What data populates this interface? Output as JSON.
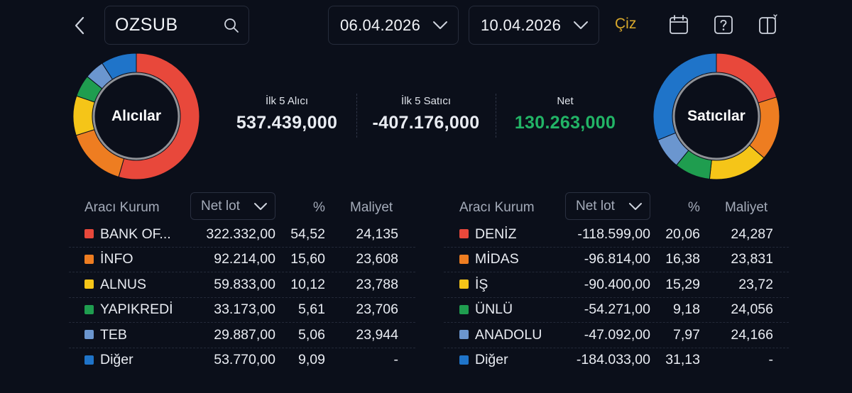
{
  "header": {
    "search_value": "OZSUB",
    "start_date": "06.04.2026",
    "end_date": "10.04.2026",
    "draw_label": "Çiz",
    "icons": [
      "chevron-left-icon",
      "search-icon",
      "chevron-down-icon",
      "calendar-icon",
      "help-icon",
      "layout-toggle-icon"
    ]
  },
  "summary": {
    "buyers_label": "Alıcılar",
    "sellers_label": "Satıcılar",
    "top5_buyers_label": "İlk 5 Alıcı",
    "top5_buyers_value": "537.439,000",
    "top5_sellers_label": "İlk 5 Satıcı",
    "top5_sellers_value": "-407.176,000",
    "net_label": "Net",
    "net_value": "130.263,000",
    "net_color": "#22b466"
  },
  "colors": {
    "red": "#e8483b",
    "orange": "#ee7d21",
    "yellow": "#f5c518",
    "green": "#1f9d4f",
    "lightblue": "#6b96cf",
    "blue": "#1f74c9"
  },
  "buyers": {
    "headers": {
      "broker": "Aracı Kurum",
      "sort": "Net lot",
      "pct": "%",
      "cost": "Maliyet"
    },
    "rows": [
      {
        "name": "BANK OF...",
        "lot": "322.332,00",
        "pct": "54,52",
        "cost": "24,135",
        "color": "#e8483b"
      },
      {
        "name": "İNFO",
        "lot": "92.214,00",
        "pct": "15,60",
        "cost": "23,608",
        "color": "#ee7d21"
      },
      {
        "name": "ALNUS",
        "lot": "59.833,00",
        "pct": "10,12",
        "cost": "23,788",
        "color": "#f5c518"
      },
      {
        "name": "YAPIKREDİ",
        "lot": "33.173,00",
        "pct": "5,61",
        "cost": "23,706",
        "color": "#1f9d4f"
      },
      {
        "name": "TEB",
        "lot": "29.887,00",
        "pct": "5,06",
        "cost": "23,944",
        "color": "#6b96cf"
      },
      {
        "name": "Diğer",
        "lot": "53.770,00",
        "pct": "9,09",
        "cost": "-",
        "color": "#1f74c9"
      }
    ]
  },
  "sellers": {
    "headers": {
      "broker": "Aracı Kurum",
      "sort": "Net lot",
      "pct": "%",
      "cost": "Maliyet"
    },
    "rows": [
      {
        "name": "DENİZ",
        "lot": "-118.599,00",
        "pct": "20,06",
        "cost": "24,287",
        "color": "#e8483b"
      },
      {
        "name": "MİDAS",
        "lot": "-96.814,00",
        "pct": "16,38",
        "cost": "23,831",
        "color": "#ee7d21"
      },
      {
        "name": "İŞ",
        "lot": "-90.400,00",
        "pct": "15,29",
        "cost": "23,72",
        "color": "#f5c518"
      },
      {
        "name": "ÜNLÜ",
        "lot": "-54.271,00",
        "pct": "9,18",
        "cost": "24,056",
        "color": "#1f9d4f"
      },
      {
        "name": "ANADOLU",
        "lot": "-47.092,00",
        "pct": "7,97",
        "cost": "24,166",
        "color": "#6b96cf"
      },
      {
        "name": "Diğer",
        "lot": "-184.033,00",
        "pct": "31,13",
        "cost": "-",
        "color": "#1f74c9"
      }
    ]
  }
}
